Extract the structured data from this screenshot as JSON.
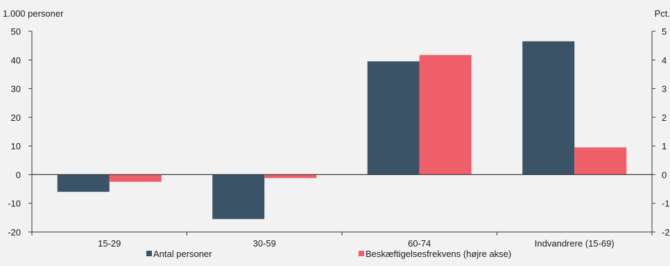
{
  "chart_data": {
    "type": "bar",
    "left_axis_unit": "1.000 personer",
    "right_axis_unit": "Pct.",
    "categories": [
      "15-29",
      "30-59",
      "60-74",
      "Indvandrere (15-69)"
    ],
    "left_ylim": [
      -20,
      50
    ],
    "left_ticks": [
      "50",
      "40",
      "30",
      "20",
      "10",
      "0",
      "-10",
      "-20"
    ],
    "right_ylim": [
      -2,
      5
    ],
    "right_ticks": [
      "5",
      "4",
      "3",
      "2",
      "1",
      "0",
      "-1",
      "-2"
    ],
    "series": [
      {
        "name": "Antal personer",
        "axis": "left",
        "color": "#3b5366",
        "values": [
          -6,
          -15.5,
          39.5,
          46.5
        ]
      },
      {
        "name": "Beskæftigelsesfrekvens (højre akse)",
        "axis": "right",
        "color": "#ee5f69",
        "values": [
          -0.25,
          -0.12,
          4.17,
          0.95
        ]
      }
    ],
    "grid": false,
    "legend_position": "bottom"
  }
}
